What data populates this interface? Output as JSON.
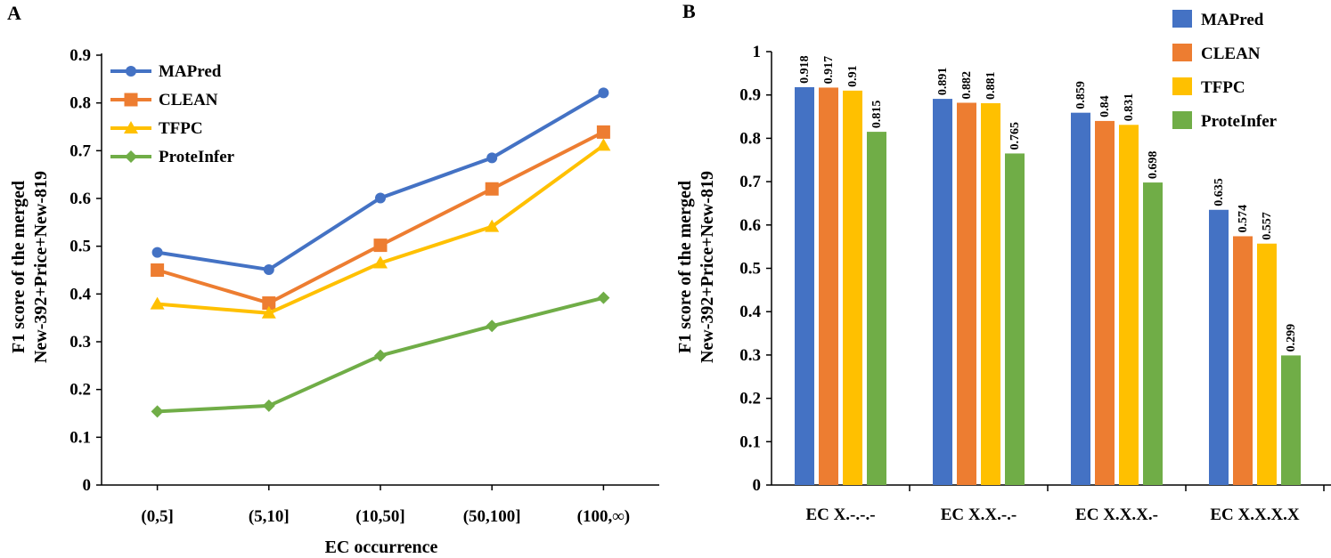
{
  "panel_labels": [
    "A",
    "B"
  ],
  "chart_data": [
    {
      "panel": "A",
      "type": "line",
      "xlabel": "EC occurrence",
      "ylabel": [
        "F1 score of the merged",
        "New-392+Price+New-819"
      ],
      "categories": [
        "(0,5]",
        "(5,10]",
        "(10,50]",
        "(50,100]",
        "(100,∞)"
      ],
      "ylim": [
        0,
        0.9
      ],
      "yticks": [
        "0",
        "0.1",
        "0.2",
        "0.3",
        "0.4",
        "0.5",
        "0.6",
        "0.7",
        "0.8",
        "0.9"
      ],
      "legend_position": "top-left",
      "series": [
        {
          "name": "MAPred",
          "color": "#4472C4",
          "marker": "circle",
          "values": [
            0.487,
            0.451,
            0.601,
            0.685,
            0.821
          ]
        },
        {
          "name": "CLEAN",
          "color": "#ED7D31",
          "marker": "square",
          "values": [
            0.45,
            0.381,
            0.502,
            0.62,
            0.739
          ]
        },
        {
          "name": "TFPC",
          "color": "#FFC000",
          "marker": "triangle",
          "values": [
            0.379,
            0.36,
            0.465,
            0.541,
            0.711
          ]
        },
        {
          "name": "ProteInfer",
          "color": "#70AD47",
          "marker": "diamond",
          "values": [
            0.154,
            0.166,
            0.271,
            0.333,
            0.392
          ]
        }
      ]
    },
    {
      "panel": "B",
      "type": "bar",
      "xlabel": "",
      "ylabel": [
        "F1 score of the merged",
        "New-392+Price+New-819"
      ],
      "categories": [
        "EC X.-.-.-",
        "EC X.X.-.-",
        "EC X.X.X.-",
        "EC X.X.X.X"
      ],
      "ylim": [
        0,
        1
      ],
      "yticks": [
        "0",
        "0.1",
        "0.2",
        "0.3",
        "0.4",
        "0.5",
        "0.6",
        "0.7",
        "0.8",
        "0.9",
        "1"
      ],
      "legend_position": "top-right",
      "series": [
        {
          "name": "MAPred",
          "color": "#4472C4",
          "values": [
            0.918,
            0.891,
            0.859,
            0.635
          ],
          "labels": [
            "0.918",
            "0.891",
            "0.859",
            "0.635"
          ]
        },
        {
          "name": "CLEAN",
          "color": "#ED7D31",
          "values": [
            0.917,
            0.882,
            0.84,
            0.574
          ],
          "labels": [
            "0.917",
            "0.882",
            "0.84",
            "0.574"
          ]
        },
        {
          "name": "TFPC",
          "color": "#FFC000",
          "values": [
            0.91,
            0.881,
            0.831,
            0.557
          ],
          "labels": [
            "0.91",
            "0.881",
            "0.831",
            "0.557"
          ]
        },
        {
          "name": "ProteInfer",
          "color": "#70AD47",
          "values": [
            0.815,
            0.765,
            0.698,
            0.299
          ],
          "labels": [
            "0.815",
            "0.765",
            "0.698",
            "0.299"
          ]
        }
      ]
    }
  ]
}
